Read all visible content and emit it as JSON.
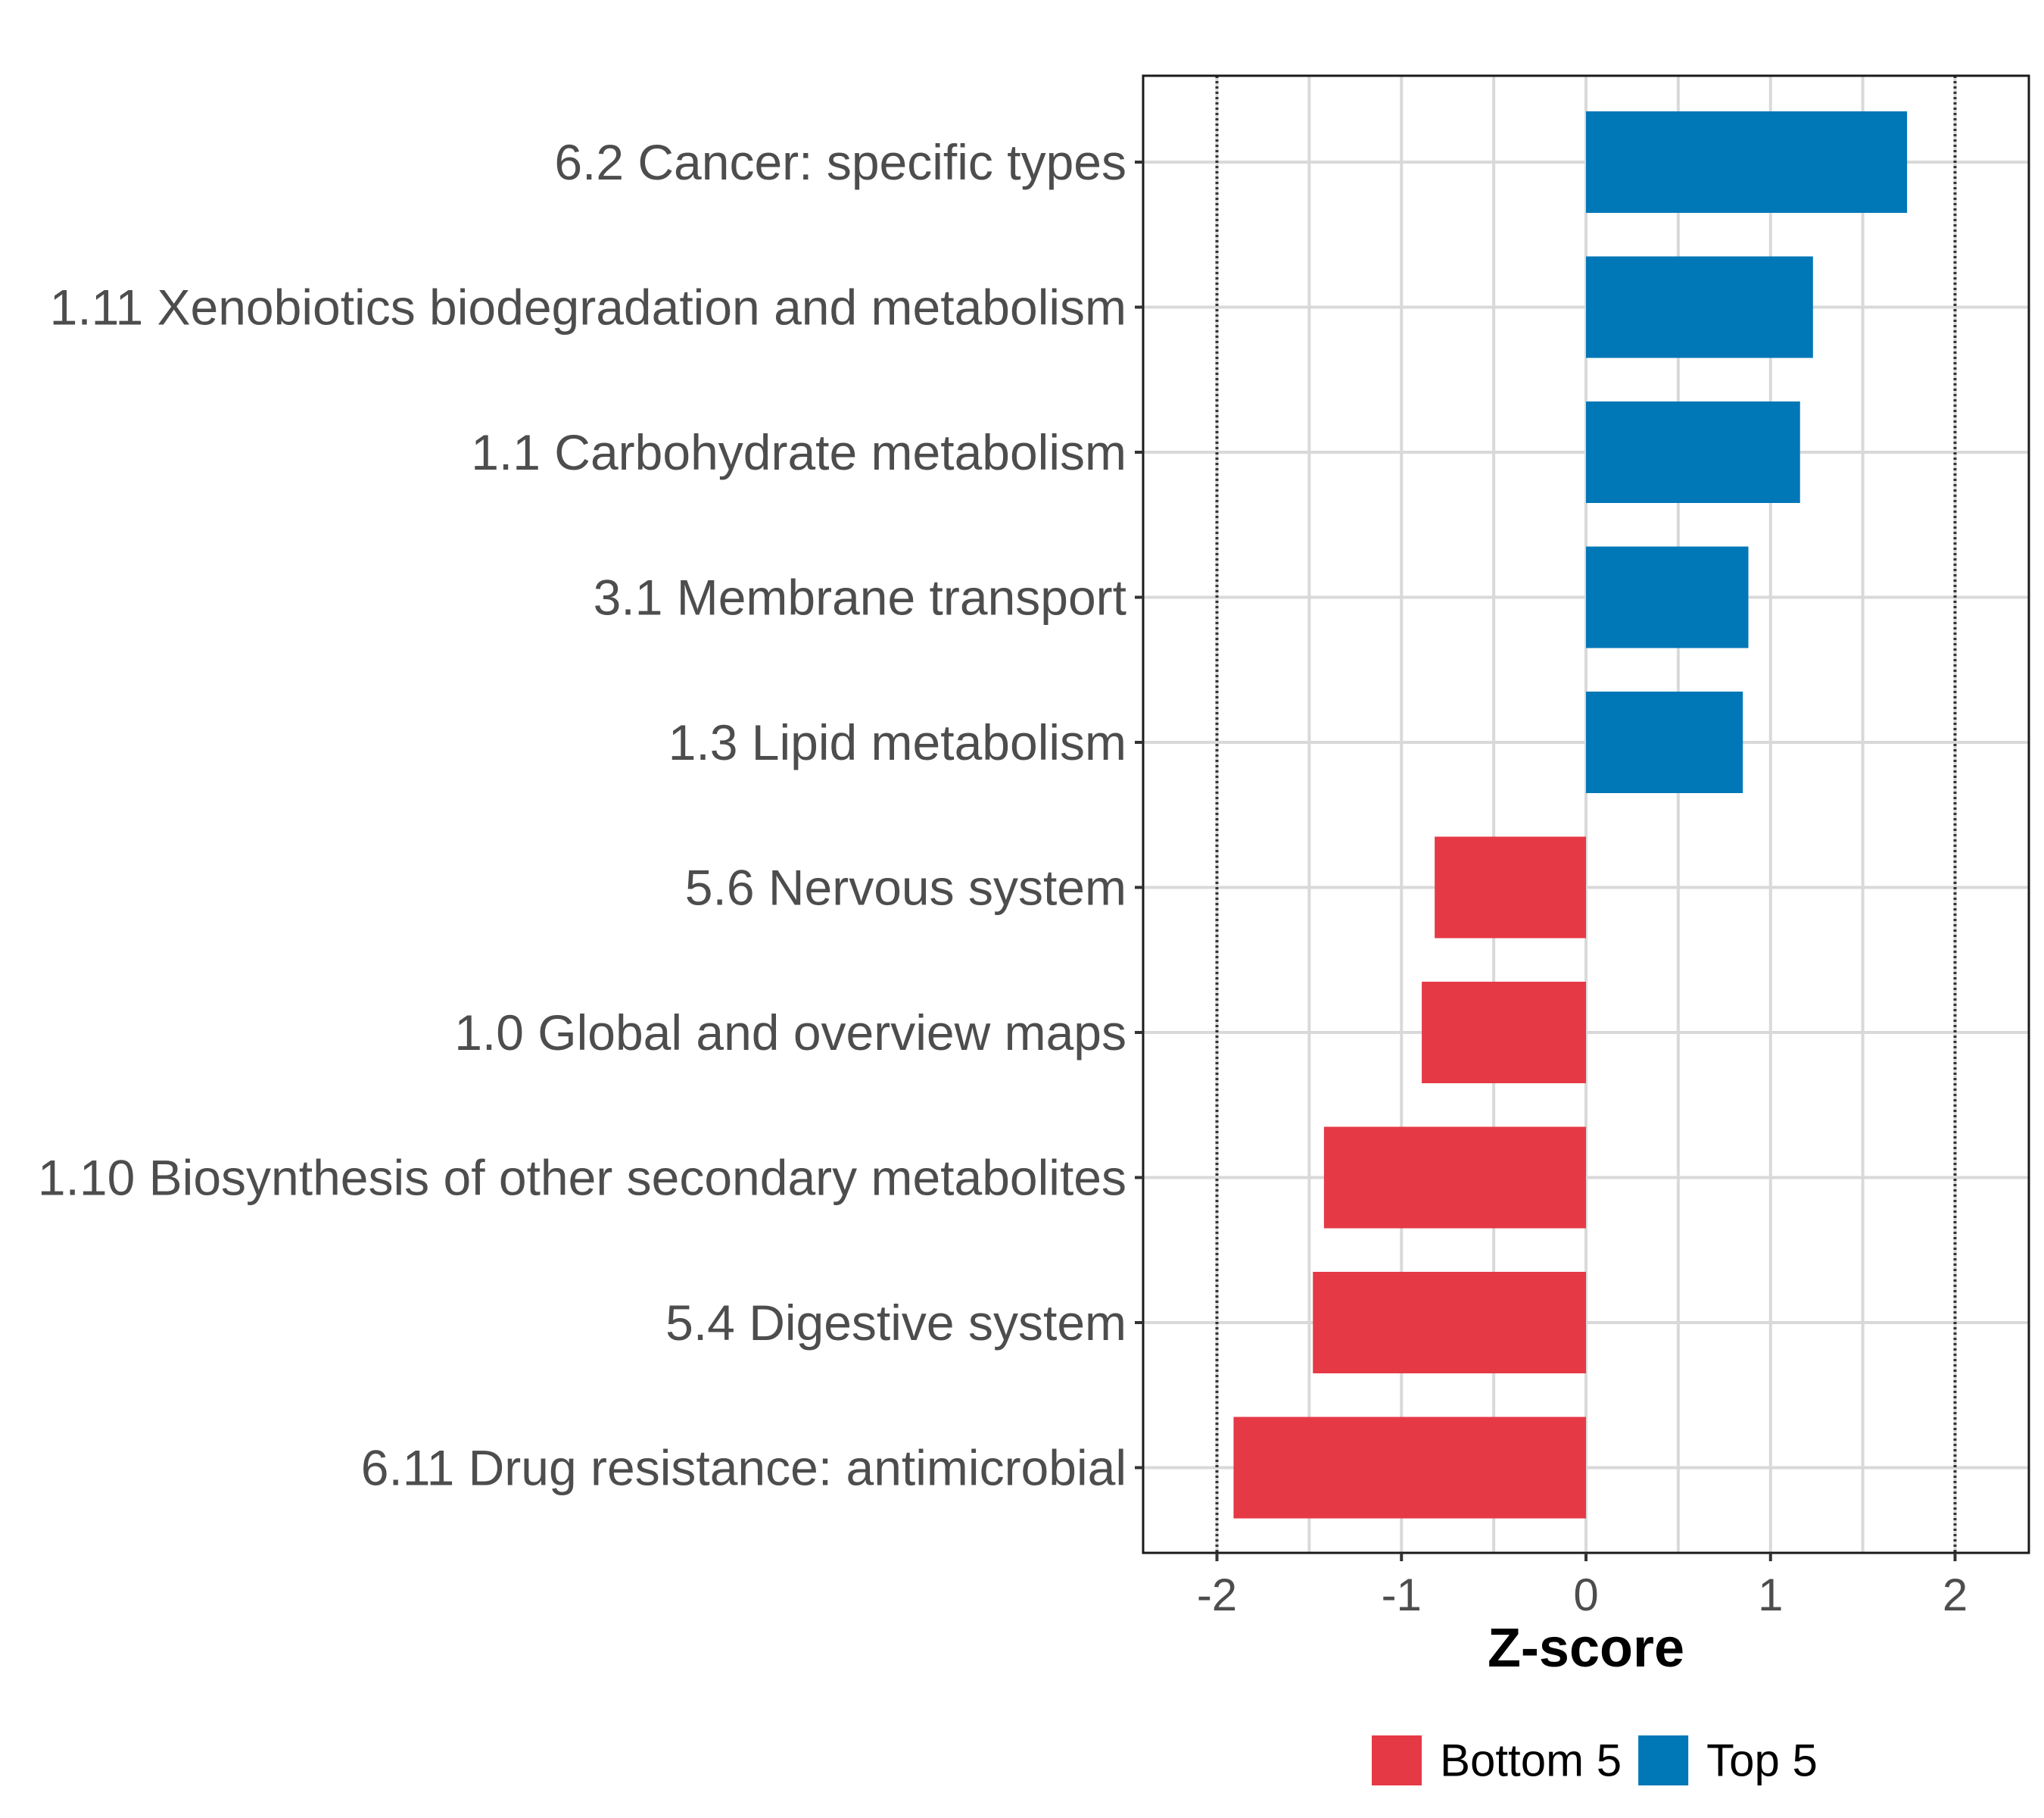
{
  "chart_data": {
    "type": "bar",
    "orientation": "horizontal",
    "categories": [
      "6.2 Cancer: specific types",
      "1.11 Xenobiotics biodegradation and metabolism",
      "1.1 Carbohydrate metabolism",
      "3.1 Membrane transport",
      "1.3 Lipid metabolism",
      "5.6 Nervous system",
      "1.0 Global and overview maps",
      "1.10 Biosynthesis of other secondary metabolites",
      "5.4 Digestive system",
      "6.11 Drug resistance: antimicrobial"
    ],
    "values": [
      1.74,
      1.23,
      1.16,
      0.88,
      0.85,
      -0.82,
      -0.89,
      -1.42,
      -1.48,
      -1.91
    ],
    "groups": [
      "Top 5",
      "Top 5",
      "Top 5",
      "Top 5",
      "Top 5",
      "Bottom 5",
      "Bottom 5",
      "Bottom 5",
      "Bottom 5",
      "Bottom 5"
    ],
    "xlabel": "Z-score",
    "ylabel": "",
    "xlim": [
      -2.4,
      2.4
    ],
    "xticks": [
      -2,
      -1,
      0,
      1,
      2
    ],
    "xtick_labels": [
      "-2",
      "-1",
      "0",
      "1",
      "2"
    ],
    "reference_lines": [
      -2,
      2
    ],
    "grid": true,
    "legend": {
      "position": "bottom",
      "entries": [
        {
          "label": "Bottom 5",
          "color": "#e63946"
        },
        {
          "label": "Top 5",
          "color": "#0077b6"
        }
      ]
    }
  }
}
